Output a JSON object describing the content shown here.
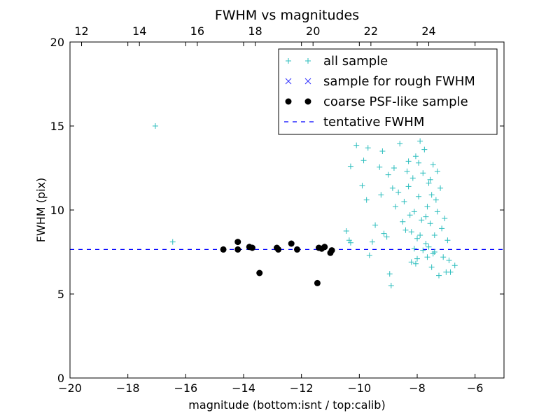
{
  "chart_data": {
    "type": "scatter",
    "title": "FWHM vs magnitudes",
    "xlabel": "magnitude (bottom:isnt / top:calib)",
    "ylabel": "FWHM (pix)",
    "xlim": [
      -20,
      -5
    ],
    "ylim": [
      0,
      20
    ],
    "top_axis": {
      "offset": 31.6,
      "ticks": [
        12,
        14,
        16,
        18,
        20,
        22,
        24
      ],
      "tick_labels": [
        "12",
        "14",
        "16",
        "18",
        "20",
        "22",
        "24"
      ]
    },
    "x_ticks": [
      -20,
      -18,
      -16,
      -14,
      -12,
      -10,
      -8,
      -6
    ],
    "x_tick_labels": [
      "−20",
      "−18",
      "−16",
      "−14",
      "−12",
      "−10",
      "−8",
      "−6"
    ],
    "y_ticks": [
      0,
      5,
      10,
      15,
      20
    ],
    "y_tick_labels": [
      "0",
      "5",
      "10",
      "15",
      "20"
    ],
    "grid": false,
    "legend_position": "top-right",
    "colors": {
      "all": "#2bbdbd",
      "rough": "#3333ff",
      "coarse": "#000000",
      "fwhm": "#0000ff"
    },
    "series": [
      {
        "name": "all sample",
        "marker": "plus",
        "points": [
          [
            -17.05,
            15.0
          ],
          [
            -16.45,
            8.1
          ],
          [
            -10.45,
            8.75
          ],
          [
            -10.35,
            8.2
          ],
          [
            -10.3,
            8.05
          ],
          [
            -10.3,
            12.6
          ],
          [
            -10.1,
            13.85
          ],
          [
            -9.9,
            11.45
          ],
          [
            -9.85,
            12.95
          ],
          [
            -9.75,
            10.6
          ],
          [
            -9.7,
            13.7
          ],
          [
            -9.65,
            7.3
          ],
          [
            -9.55,
            8.1
          ],
          [
            -9.45,
            9.1
          ],
          [
            -9.3,
            12.55
          ],
          [
            -9.25,
            10.9
          ],
          [
            -9.2,
            13.5
          ],
          [
            -9.15,
            8.6
          ],
          [
            -9.05,
            8.4
          ],
          [
            -9.0,
            12.1
          ],
          [
            -8.95,
            6.2
          ],
          [
            -8.9,
            5.5
          ],
          [
            -8.85,
            11.3
          ],
          [
            -8.8,
            12.5
          ],
          [
            -8.75,
            10.2
          ],
          [
            -8.65,
            11.05
          ],
          [
            -8.6,
            13.95
          ],
          [
            -8.5,
            9.3
          ],
          [
            -8.45,
            10.5
          ],
          [
            -8.4,
            8.8
          ],
          [
            -8.35,
            12.3
          ],
          [
            -8.3,
            12.9
          ],
          [
            -8.25,
            9.7
          ],
          [
            -8.2,
            6.9
          ],
          [
            -8.15,
            11.9
          ],
          [
            -8.1,
            9.9
          ],
          [
            -8.05,
            13.2
          ],
          [
            -8.0,
            8.3
          ],
          [
            -7.95,
            10.8
          ],
          [
            -7.9,
            14.1
          ],
          [
            -7.85,
            9.4
          ],
          [
            -7.8,
            12.2
          ],
          [
            -7.75,
            13.6
          ],
          [
            -7.7,
            8.0
          ],
          [
            -7.65,
            10.2
          ],
          [
            -7.6,
            11.6
          ],
          [
            -7.55,
            9.2
          ],
          [
            -7.5,
            6.6
          ],
          [
            -7.45,
            12.7
          ],
          [
            -7.4,
            8.5
          ],
          [
            -7.35,
            10.6
          ],
          [
            -7.3,
            9.9
          ],
          [
            -7.25,
            6.1
          ],
          [
            -7.2,
            11.3
          ],
          [
            -7.15,
            8.9
          ],
          [
            -7.1,
            7.2
          ],
          [
            -7.05,
            9.5
          ],
          [
            -7.0,
            6.3
          ],
          [
            -6.95,
            8.2
          ],
          [
            -6.9,
            7.0
          ],
          [
            -6.85,
            6.3
          ],
          [
            -6.7,
            6.7
          ],
          [
            -8.0,
            7.1
          ],
          [
            -7.8,
            7.6
          ],
          [
            -7.6,
            7.8
          ],
          [
            -7.4,
            7.5
          ],
          [
            -7.9,
            8.5
          ],
          [
            -8.1,
            7.7
          ],
          [
            -7.7,
            9.6
          ],
          [
            -7.5,
            10.9
          ],
          [
            -7.3,
            12.3
          ],
          [
            -8.3,
            11.4
          ],
          [
            -8.2,
            8.7
          ],
          [
            -7.95,
            12.8
          ],
          [
            -8.05,
            6.8
          ],
          [
            -7.65,
            7.2
          ],
          [
            -7.55,
            11.8
          ],
          [
            -7.45,
            7.4
          ]
        ]
      },
      {
        "name": "sample for rough FWHM",
        "marker": "x",
        "points": []
      },
      {
        "name": "coarse PSF-like sample",
        "marker": "circle",
        "points": [
          [
            -14.7,
            7.65
          ],
          [
            -14.2,
            8.1
          ],
          [
            -14.2,
            7.65
          ],
          [
            -13.8,
            7.8
          ],
          [
            -13.7,
            7.75
          ],
          [
            -13.45,
            6.25
          ],
          [
            -12.85,
            7.75
          ],
          [
            -12.8,
            7.65
          ],
          [
            -12.35,
            8.0
          ],
          [
            -12.15,
            7.65
          ],
          [
            -11.45,
            5.65
          ],
          [
            -11.4,
            7.75
          ],
          [
            -11.3,
            7.7
          ],
          [
            -11.2,
            7.8
          ],
          [
            -11.0,
            7.45
          ],
          [
            -10.95,
            7.6
          ]
        ]
      },
      {
        "name": "tentative FWHM",
        "marker": "dashed-line",
        "y": 7.65
      }
    ]
  }
}
